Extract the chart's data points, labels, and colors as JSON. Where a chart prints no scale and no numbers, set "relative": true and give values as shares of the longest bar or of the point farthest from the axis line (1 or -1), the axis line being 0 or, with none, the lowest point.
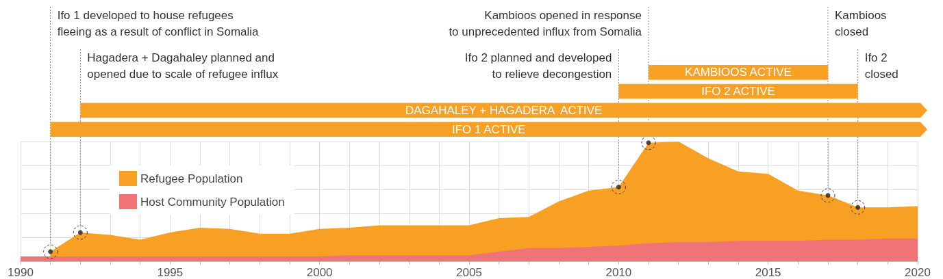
{
  "chart_data": [
    {
      "type": "bar",
      "orientation": "horizontal",
      "categories": [
        "KAMBIOOS ACTIVE",
        "IFO 2 ACTIVE",
        "DAGAHALEY + HAGADERA  ACTIVE",
        "IFO 1 ACTIVE"
      ],
      "base": [
        2011,
        2010,
        1992,
        1991
      ],
      "values": [
        6,
        8,
        28,
        29
      ],
      "color": "#f7a024",
      "xlim": [
        1990,
        2020
      ],
      "tick_labels": false
    },
    {
      "type": "area",
      "relative": true,
      "x": [
        1990,
        1991,
        1992,
        1993,
        1994,
        1995,
        1996,
        1997,
        1998,
        1999,
        2000,
        2001,
        2002,
        2003,
        2004,
        2005,
        2006,
        2007,
        2008,
        2009,
        2010,
        2011,
        2012,
        2013,
        2014,
        2015,
        2016,
        2017,
        2018,
        2019,
        2020
      ],
      "series": [
        {
          "name": "Refugee Population",
          "color": "#f7a024",
          "values": [
            null,
            0.08,
            0.24,
            0.22,
            0.18,
            0.24,
            0.28,
            0.27,
            0.23,
            0.23,
            0.27,
            0.28,
            0.3,
            0.3,
            0.3,
            0.3,
            0.36,
            0.37,
            0.5,
            0.59,
            0.62,
            0.99,
            1,
            0.86,
            0.75,
            0.73,
            0.59,
            0.55,
            0.45,
            0.45,
            0.46
          ]
        },
        {
          "name": "Host Community Population",
          "color": "#f07378",
          "values": [
            0.04,
            0.04,
            0.04,
            0.04,
            0.04,
            0.04,
            0.04,
            0.04,
            0.04,
            0.04,
            0.04,
            0.05,
            0.05,
            0.05,
            0.05,
            0.05,
            0.08,
            0.11,
            0.11,
            0.12,
            0.13,
            0.15,
            0.16,
            0.16,
            0.17,
            0.17,
            0.17,
            0.18,
            0.18,
            0.19,
            0.19
          ]
        },
        {
          "type": "scatter",
          "color": "#222222",
          "marker": "circle",
          "x": [
            1991,
            1992,
            2010,
            2011,
            2017,
            2018
          ],
          "values": [
            0.08,
            0.24,
            0.62,
            0.99,
            0.55,
            0.45
          ]
        }
      ],
      "xlim": [
        1990,
        2020
      ],
      "xticks": [
        1990,
        {
          "value": 1991,
          "label": null
        },
        {
          "value": 1992,
          "label": null
        },
        {
          "value": 1993,
          "label": null
        },
        {
          "value": 1994,
          "label": null
        },
        1995,
        {
          "value": 1996,
          "label": null
        },
        {
          "value": 1997,
          "label": null
        },
        {
          "value": 1998,
          "label": null
        },
        {
          "value": 1999,
          "label": null
        },
        2000,
        {
          "value": 2001,
          "label": null
        },
        {
          "value": 2002,
          "label": null
        },
        {
          "value": 2003,
          "label": null
        },
        {
          "value": 2004,
          "label": null
        },
        2005,
        {
          "value": 2006,
          "label": null
        },
        {
          "value": 2007,
          "label": null
        },
        {
          "value": 2008,
          "label": null
        },
        {
          "value": 2009,
          "label": null
        },
        2010,
        {
          "value": 2011,
          "label": null
        },
        {
          "value": 2012,
          "label": null
        },
        {
          "value": 2013,
          "label": null
        },
        {
          "value": 2014,
          "label": null
        },
        2015,
        {
          "value": 2016,
          "label": null
        },
        {
          "value": 2017,
          "label": null
        },
        {
          "value": 2018,
          "label": null
        },
        {
          "value": 2019,
          "label": null
        },
        2020
      ],
      "grid": true,
      "legend": "top left",
      "annotations": [
        "Ifo 1 developed to house refugees\nfleeing as a result of conflict in Somalia",
        "Hagadera + Dagahaley planned and\nopened due to scale of refugee influx",
        "Ifo 2 planned and developed\nto relieve decongestion",
        "Kambioos opened in response\nto unprecedented influx from Somalia",
        "Kambioos\nclosed",
        "Ifo 2\nclosed"
      ]
    }
  ]
}
